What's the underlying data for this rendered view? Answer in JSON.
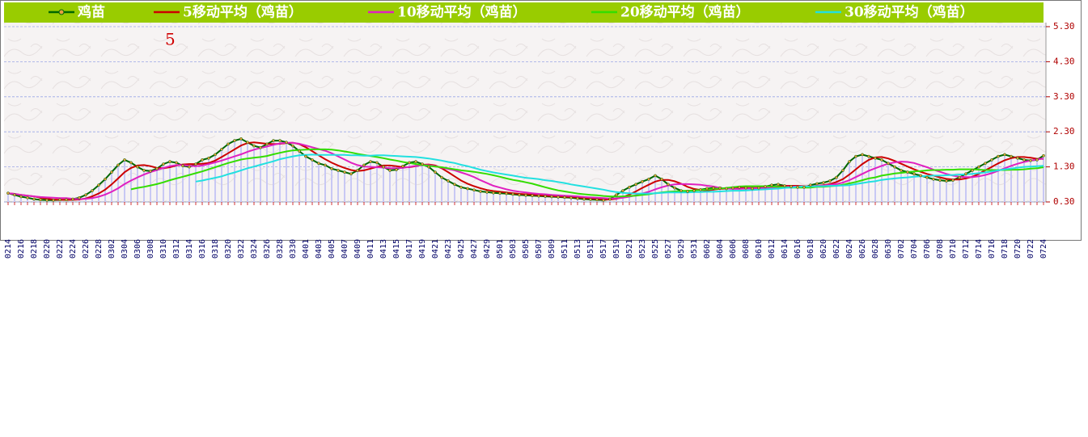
{
  "chart_data": {
    "type": "line",
    "annotation": "5",
    "categories": [
      "0214",
      null,
      "0216",
      null,
      "0218",
      null,
      "0220",
      null,
      "0222",
      null,
      "0224",
      null,
      "0226",
      null,
      "0228",
      null,
      "0302",
      null,
      "0304",
      null,
      "0306",
      null,
      "0308",
      null,
      "0310",
      null,
      "0312",
      null,
      "0314",
      null,
      "0316",
      null,
      "0318",
      null,
      "0320",
      null,
      "0322",
      null,
      "0324",
      null,
      "0326",
      null,
      "0328",
      null,
      "0330",
      null,
      "0401",
      null,
      "0403",
      null,
      "0405",
      null,
      "0407",
      null,
      "0409",
      null,
      "0411",
      null,
      "0413",
      null,
      "0415",
      null,
      "0417",
      null,
      "0419",
      null,
      "0421",
      null,
      "0423",
      null,
      "0425",
      null,
      "0427",
      null,
      "0429",
      null,
      "0501",
      null,
      "0503",
      null,
      "0505",
      null,
      "0507",
      null,
      "0509",
      null,
      "0511",
      null,
      "0513",
      null,
      "0515",
      null,
      "0517",
      null,
      "0519",
      null,
      "0521",
      null,
      "0523",
      null,
      "0525",
      null,
      "0527",
      null,
      "0529",
      null,
      "0531",
      null,
      "0602",
      null,
      "0604",
      null,
      "0606",
      null,
      "0608",
      null,
      "0610",
      null,
      "0612",
      null,
      "0614",
      null,
      "0616",
      null,
      "0618",
      null,
      "0620",
      null,
      "0622",
      null,
      "0624",
      null,
      "0626",
      null,
      "0628",
      null,
      "0630",
      null,
      "0702",
      null,
      "0704",
      null,
      "0706",
      null,
      "0708",
      null,
      "0710",
      null,
      "0712",
      null,
      "0714",
      null,
      "0716",
      null,
      "0718",
      null,
      "0720",
      null,
      "0722",
      null,
      "0724"
    ],
    "series": [
      {
        "name": "鸡苗",
        "color": "#006600",
        "values": [
          0.55,
          0.5,
          0.45,
          0.42,
          0.38,
          0.36,
          0.35,
          0.35,
          0.36,
          0.36,
          0.38,
          0.42,
          0.5,
          0.62,
          0.78,
          0.95,
          1.15,
          1.35,
          1.5,
          1.42,
          1.3,
          1.2,
          1.18,
          1.25,
          1.38,
          1.45,
          1.42,
          1.33,
          1.3,
          1.38,
          1.5,
          1.55,
          1.65,
          1.8,
          1.95,
          2.05,
          2.1,
          2.0,
          1.9,
          1.85,
          1.95,
          2.05,
          2.05,
          2.0,
          1.9,
          1.75,
          1.6,
          1.5,
          1.4,
          1.35,
          1.25,
          1.2,
          1.15,
          1.1,
          1.2,
          1.35,
          1.45,
          1.42,
          1.3,
          1.2,
          1.22,
          1.32,
          1.42,
          1.45,
          1.38,
          1.3,
          1.15,
          1.0,
          0.9,
          0.8,
          0.72,
          0.68,
          0.64,
          0.6,
          0.58,
          0.56,
          0.55,
          0.54,
          0.52,
          0.5,
          0.49,
          0.48,
          0.47,
          0.46,
          0.45,
          0.44,
          0.43,
          0.42,
          0.4,
          0.38,
          0.37,
          0.36,
          0.35,
          0.38,
          0.5,
          0.62,
          0.72,
          0.8,
          0.88,
          0.95,
          1.05,
          0.95,
          0.8,
          0.7,
          0.62,
          0.6,
          0.62,
          0.65,
          0.68,
          0.7,
          0.7,
          0.68,
          0.7,
          0.72,
          0.7,
          0.68,
          0.7,
          0.74,
          0.78,
          0.8,
          0.76,
          0.74,
          0.72,
          0.72,
          0.78,
          0.82,
          0.85,
          0.9,
          1.0,
          1.2,
          1.45,
          1.6,
          1.65,
          1.6,
          1.55,
          1.5,
          1.4,
          1.3,
          1.2,
          1.15,
          1.1,
          1.05,
          1.0,
          0.95,
          0.92,
          0.9,
          0.92,
          1.0,
          1.1,
          1.2,
          1.3,
          1.4,
          1.5,
          1.6,
          1.65,
          1.6,
          1.55,
          1.5,
          1.48,
          1.5,
          1.62
        ]
      },
      {
        "name": "5移动平均（鸡苗）",
        "color": "#cc0000",
        "values": [
          0.55,
          0.53,
          0.5,
          0.48,
          0.46,
          0.42,
          0.39,
          0.37,
          0.36,
          0.36,
          0.36,
          0.37,
          0.4,
          0.46,
          0.54,
          0.65,
          0.8,
          0.97,
          1.15,
          1.27,
          1.34,
          1.35,
          1.32,
          1.27,
          1.26,
          1.29,
          1.34,
          1.37,
          1.38,
          1.38,
          1.39,
          1.41,
          1.48,
          1.58,
          1.69,
          1.8,
          1.91,
          1.98,
          2.0,
          1.98,
          1.96,
          1.95,
          1.96,
          1.98,
          1.99,
          1.95,
          1.86,
          1.75,
          1.63,
          1.52,
          1.42,
          1.34,
          1.27,
          1.21,
          1.18,
          1.2,
          1.25,
          1.3,
          1.34,
          1.34,
          1.32,
          1.29,
          1.29,
          1.32,
          1.36,
          1.37,
          1.34,
          1.26,
          1.15,
          1.03,
          0.91,
          0.82,
          0.75,
          0.69,
          0.64,
          0.61,
          0.59,
          0.57,
          0.55,
          0.53,
          0.52,
          0.51,
          0.49,
          0.48,
          0.47,
          0.46,
          0.45,
          0.44,
          0.43,
          0.41,
          0.4,
          0.39,
          0.37,
          0.37,
          0.39,
          0.44,
          0.51,
          0.6,
          0.7,
          0.79,
          0.88,
          0.93,
          0.93,
          0.89,
          0.82,
          0.73,
          0.67,
          0.64,
          0.63,
          0.65,
          0.67,
          0.68,
          0.69,
          0.7,
          0.7,
          0.7,
          0.7,
          0.71,
          0.72,
          0.74,
          0.76,
          0.76,
          0.76,
          0.75,
          0.74,
          0.76,
          0.78,
          0.81,
          0.87,
          0.95,
          1.08,
          1.23,
          1.38,
          1.5,
          1.57,
          1.58,
          1.54,
          1.47,
          1.39,
          1.31,
          1.23,
          1.16,
          1.1,
          1.05,
          1.0,
          0.96,
          0.94,
          0.94,
          0.97,
          1.02,
          1.1,
          1.2,
          1.3,
          1.4,
          1.49,
          1.55,
          1.58,
          1.58,
          1.56,
          1.53,
          1.53
        ]
      },
      {
        "name": "10移动平均（鸡苗）",
        "color": "#e020c0",
        "values": [
          0.55,
          0.53,
          0.5,
          0.48,
          0.46,
          0.44,
          0.43,
          0.42,
          0.41,
          0.41,
          0.39,
          0.38,
          0.39,
          0.41,
          0.45,
          0.51,
          0.59,
          0.69,
          0.81,
          0.91,
          1.0,
          1.08,
          1.15,
          1.21,
          1.27,
          1.32,
          1.35,
          1.35,
          1.33,
          1.32,
          1.34,
          1.38,
          1.43,
          1.48,
          1.54,
          1.6,
          1.66,
          1.73,
          1.79,
          1.84,
          1.88,
          1.93,
          1.97,
          1.99,
          1.99,
          1.96,
          1.91,
          1.86,
          1.81,
          1.76,
          1.69,
          1.6,
          1.51,
          1.42,
          1.35,
          1.31,
          1.3,
          1.29,
          1.28,
          1.26,
          1.26,
          1.27,
          1.3,
          1.33,
          1.35,
          1.35,
          1.32,
          1.28,
          1.24,
          1.2,
          1.14,
          1.08,
          1.01,
          0.92,
          0.84,
          0.76,
          0.71,
          0.66,
          0.62,
          0.59,
          0.57,
          0.55,
          0.53,
          0.52,
          0.5,
          0.49,
          0.48,
          0.47,
          0.46,
          0.44,
          0.43,
          0.42,
          0.41,
          0.4,
          0.4,
          0.42,
          0.45,
          0.49,
          0.54,
          0.59,
          0.66,
          0.72,
          0.77,
          0.8,
          0.81,
          0.81,
          0.8,
          0.79,
          0.76,
          0.74,
          0.7,
          0.68,
          0.67,
          0.67,
          0.68,
          0.69,
          0.69,
          0.7,
          0.71,
          0.72,
          0.73,
          0.73,
          0.74,
          0.74,
          0.74,
          0.76,
          0.77,
          0.79,
          0.81,
          0.85,
          0.92,
          1.01,
          1.1,
          1.19,
          1.26,
          1.33,
          1.39,
          1.43,
          1.45,
          1.44,
          1.41,
          1.35,
          1.29,
          1.22,
          1.16,
          1.1,
          1.05,
          1.02,
          1.01,
          1.01,
          1.03,
          1.07,
          1.12,
          1.19,
          1.26,
          1.33,
          1.39,
          1.44,
          1.48,
          1.51,
          1.54
        ]
      },
      {
        "name": "20移动平均（鸡苗）",
        "color": "#33dd00",
        "values": [
          null,
          null,
          null,
          null,
          null,
          null,
          null,
          null,
          null,
          null,
          null,
          null,
          null,
          null,
          null,
          null,
          null,
          null,
          null,
          0.66,
          0.7,
          0.73,
          0.77,
          0.81,
          0.86,
          0.92,
          0.97,
          1.02,
          1.07,
          1.12,
          1.17,
          1.23,
          1.29,
          1.35,
          1.41,
          1.46,
          1.51,
          1.54,
          1.56,
          1.58,
          1.61,
          1.66,
          1.7,
          1.74,
          1.77,
          1.78,
          1.79,
          1.8,
          1.8,
          1.8,
          1.79,
          1.77,
          1.74,
          1.71,
          1.67,
          1.64,
          1.61,
          1.58,
          1.55,
          1.51,
          1.48,
          1.44,
          1.41,
          1.38,
          1.35,
          1.33,
          1.31,
          1.29,
          1.26,
          1.23,
          1.2,
          1.18,
          1.16,
          1.13,
          1.1,
          1.06,
          1.02,
          0.97,
          0.93,
          0.9,
          0.86,
          0.82,
          0.77,
          0.72,
          0.67,
          0.63,
          0.6,
          0.57,
          0.54,
          0.52,
          0.5,
          0.49,
          0.47,
          0.46,
          0.45,
          0.46,
          0.47,
          0.48,
          0.5,
          0.52,
          0.55,
          0.57,
          0.59,
          0.6,
          0.61,
          0.62,
          0.63,
          0.64,
          0.65,
          0.67,
          0.68,
          0.7,
          0.72,
          0.74,
          0.75,
          0.75,
          0.75,
          0.75,
          0.74,
          0.73,
          0.72,
          0.71,
          0.71,
          0.71,
          0.71,
          0.73,
          0.73,
          0.75,
          0.76,
          0.79,
          0.83,
          0.87,
          0.92,
          0.97,
          1.0,
          1.05,
          1.08,
          1.11,
          1.13,
          1.15,
          1.17,
          1.18,
          1.2,
          1.21,
          1.21,
          1.22,
          1.22,
          1.23,
          1.23,
          1.23,
          1.22,
          1.21,
          1.21,
          1.21,
          1.21,
          1.22,
          1.22,
          1.23,
          1.25,
          1.26,
          1.29
        ]
      },
      {
        "name": "30移动平均（鸡苗）",
        "color": "#22e0e0",
        "values": [
          null,
          null,
          null,
          null,
          null,
          null,
          null,
          null,
          null,
          null,
          null,
          null,
          null,
          null,
          null,
          null,
          null,
          null,
          null,
          null,
          null,
          null,
          null,
          null,
          null,
          null,
          null,
          null,
          null,
          0.88,
          0.91,
          0.95,
          0.99,
          1.03,
          1.09,
          1.14,
          1.2,
          1.26,
          1.31,
          1.36,
          1.41,
          1.46,
          1.52,
          1.56,
          1.6,
          1.63,
          1.64,
          1.65,
          1.64,
          1.64,
          1.64,
          1.64,
          1.64,
          1.63,
          1.63,
          1.62,
          1.62,
          1.63,
          1.63,
          1.62,
          1.61,
          1.6,
          1.59,
          1.58,
          1.56,
          1.54,
          1.51,
          1.48,
          1.44,
          1.41,
          1.36,
          1.32,
          1.27,
          1.22,
          1.18,
          1.14,
          1.11,
          1.08,
          1.05,
          1.02,
          0.99,
          0.97,
          0.95,
          0.92,
          0.9,
          0.87,
          0.84,
          0.8,
          0.77,
          0.74,
          0.71,
          0.68,
          0.65,
          0.61,
          0.58,
          0.56,
          0.55,
          0.54,
          0.54,
          0.54,
          0.55,
          0.56,
          0.57,
          0.57,
          0.57,
          0.57,
          0.58,
          0.58,
          0.59,
          0.59,
          0.6,
          0.61,
          0.62,
          0.62,
          0.63,
          0.64,
          0.65,
          0.66,
          0.67,
          0.68,
          0.7,
          0.71,
          0.73,
          0.74,
          0.74,
          0.75,
          0.75,
          0.76,
          0.76,
          0.77,
          0.78,
          0.81,
          0.84,
          0.87,
          0.89,
          0.93,
          0.95,
          0.97,
          0.99,
          1.0,
          1.02,
          1.03,
          1.04,
          1.05,
          1.05,
          1.06,
          1.07,
          1.08,
          1.09,
          1.1,
          1.12,
          1.14,
          1.17,
          1.2,
          1.23,
          1.25,
          1.28,
          1.3,
          1.31,
          1.32,
          1.33
        ]
      }
    ],
    "ylim": [
      0.3,
      5.3
    ],
    "yticks": [
      {
        "value": 0.3,
        "label": "0.30"
      },
      {
        "value": 1.3,
        "label": "1.30"
      },
      {
        "value": 2.3,
        "label": "2.30"
      },
      {
        "value": 3.3,
        "label": "3.30"
      },
      {
        "value": 4.3,
        "label": "4.30"
      },
      {
        "value": 5.3,
        "label": "5.30"
      }
    ],
    "grid": true
  }
}
